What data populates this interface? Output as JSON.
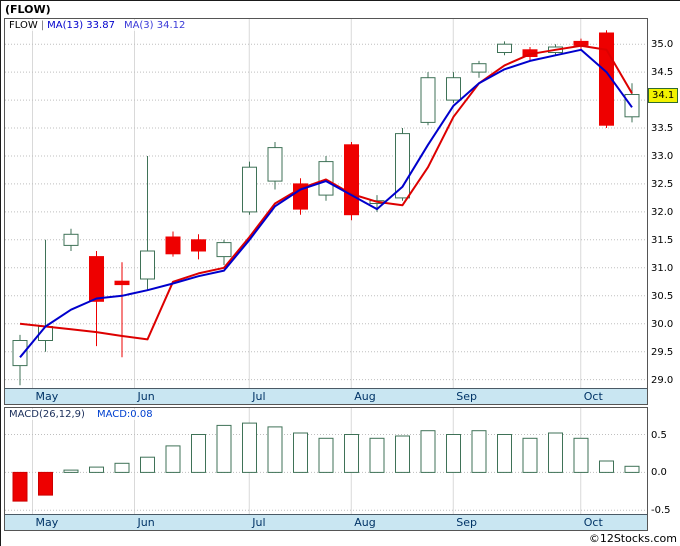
{
  "title": "(FLOW)",
  "legend": {
    "symbol": "FLOW",
    "separator": "|",
    "ma13_label": "MA(13)",
    "ma13_value": "33.87",
    "ma3_label": "MA(3)",
    "ma3_value": "34.12"
  },
  "macd_panel": {
    "label": "MACD(26,12,9)",
    "value_label": "MACD:0.08"
  },
  "price_tag": "34.1",
  "footer": {
    "copyright": "©12Stocks.com"
  },
  "colors": {
    "up_fill": "#ffffff",
    "up_outline": "#3f7257",
    "down": "#ee0000",
    "down_stroke": "#cc0000",
    "ma13_line": "#0000cc",
    "ma3_line": "#dd0000",
    "grid": "#bfbfbf",
    "month_gridline": "#d9d9d9",
    "band_bg": "#c9e6f2",
    "band_text": "#003366",
    "tag_bg": "#f2f200",
    "tag_border": "#2f6b2f"
  },
  "chart_data": [
    {
      "type": "candlestick",
      "symbol": "FLOW",
      "x_axis": {
        "months": [
          "May",
          "Jun",
          "Jul",
          "Aug",
          "Sep",
          "Oct"
        ],
        "month_tick_indices": [
          1,
          5,
          9.5,
          13.5,
          17.5,
          22.5
        ]
      },
      "y_axis": {
        "min": 29.0,
        "max": 35.0,
        "step": 0.5,
        "labels": [
          "35.0",
          "34.5",
          "33.5",
          "33.0",
          "32.5",
          "32.0",
          "31.5",
          "31.0",
          "30.5",
          "30.0",
          "29.5",
          "29.0"
        ]
      },
      "last_price": 34.1,
      "candles_ohlc": [
        [
          29.25,
          29.8,
          28.9,
          29.7
        ],
        [
          29.7,
          31.5,
          29.5,
          29.95
        ],
        [
          31.4,
          31.7,
          31.3,
          31.6
        ],
        [
          31.2,
          31.3,
          29.6,
          30.4
        ],
        [
          30.76,
          31.1,
          29.4,
          30.7
        ],
        [
          30.8,
          33.0,
          30.6,
          31.3
        ],
        [
          31.55,
          31.65,
          31.2,
          31.25
        ],
        [
          31.5,
          31.6,
          31.15,
          31.3
        ],
        [
          31.2,
          31.5,
          31.05,
          31.45
        ],
        [
          32.0,
          32.9,
          31.95,
          32.8
        ],
        [
          32.55,
          33.25,
          32.4,
          33.15
        ],
        [
          32.5,
          32.6,
          31.95,
          32.05
        ],
        [
          32.3,
          33.0,
          32.2,
          32.9
        ],
        [
          33.2,
          33.25,
          31.85,
          31.95
        ],
        [
          32.15,
          32.3,
          32.0,
          32.2
        ],
        [
          32.25,
          33.5,
          32.2,
          33.4
        ],
        [
          33.6,
          34.5,
          33.55,
          34.4
        ],
        [
          34.0,
          34.5,
          33.95,
          34.4
        ],
        [
          34.5,
          34.7,
          34.4,
          34.65
        ],
        [
          34.85,
          35.05,
          34.8,
          35.0
        ],
        [
          34.9,
          34.95,
          34.7,
          34.78
        ],
        [
          34.85,
          35.0,
          34.8,
          34.95
        ],
        [
          35.05,
          35.1,
          34.9,
          34.98
        ],
        [
          35.2,
          35.25,
          33.5,
          33.55
        ],
        [
          33.7,
          34.3,
          33.6,
          34.1
        ]
      ],
      "series": [
        {
          "name": "MA(13)",
          "last_value": 33.87,
          "color": "#0000cc",
          "values": [
            29.4,
            29.95,
            30.25,
            30.45,
            30.5,
            30.6,
            30.72,
            30.85,
            30.95,
            31.5,
            32.1,
            32.4,
            32.55,
            32.3,
            32.05,
            32.45,
            33.2,
            33.9,
            34.3,
            34.55,
            34.7,
            34.8,
            34.9,
            34.5,
            33.87
          ]
        },
        {
          "name": "MA(3)",
          "last_value": 34.12,
          "color": "#dd0000",
          "values": [
            30.0,
            29.95,
            29.9,
            29.85,
            29.78,
            29.72,
            30.75,
            30.9,
            31.0,
            31.55,
            32.15,
            32.42,
            32.58,
            32.32,
            32.18,
            32.12,
            32.8,
            33.7,
            34.3,
            34.62,
            34.82,
            34.9,
            34.97,
            34.9,
            34.12
          ]
        }
      ]
    },
    {
      "type": "bar",
      "name": "MACD(26,12,9)",
      "last_value": 0.08,
      "y_axis": {
        "labels": [
          "0.5",
          "0.0",
          "-0.5"
        ]
      },
      "values": [
        -0.38,
        -0.3,
        0.03,
        0.07,
        0.12,
        0.2,
        0.35,
        0.5,
        0.62,
        0.65,
        0.6,
        0.52,
        0.45,
        0.5,
        0.45,
        0.48,
        0.55,
        0.5,
        0.55,
        0.5,
        0.45,
        0.52,
        0.45,
        0.15,
        0.08
      ]
    }
  ]
}
